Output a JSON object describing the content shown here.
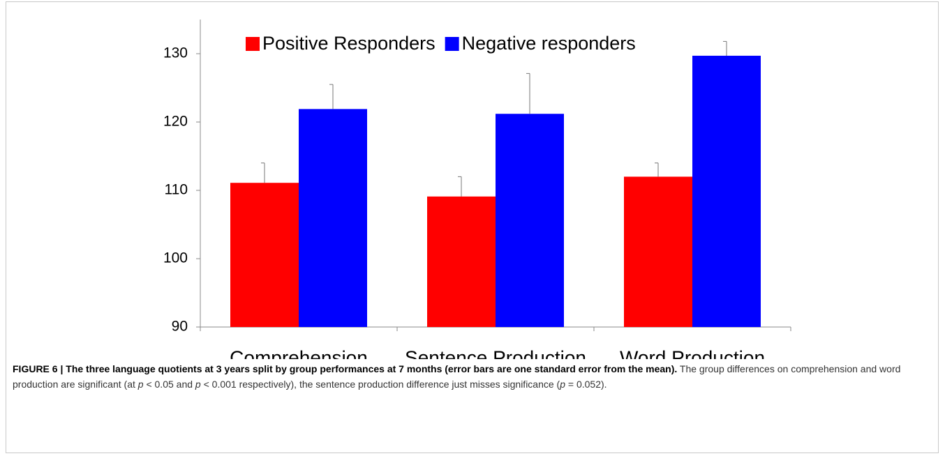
{
  "chart_data": {
    "type": "bar",
    "categories": [
      "Comprehension",
      "Sentence Production",
      "Word Production"
    ],
    "series": [
      {
        "name": "Positive Responders",
        "color": "#ff0000",
        "values": [
          111.1,
          109.1,
          112.0
        ],
        "errors": [
          2.9,
          2.9,
          2.0
        ]
      },
      {
        "name": "Negative responders",
        "color": "#0000ff",
        "values": [
          121.9,
          121.2,
          129.7
        ],
        "errors": [
          3.6,
          5.9,
          2.1
        ]
      }
    ],
    "ylim": [
      90,
      135
    ],
    "yticks": [
      90,
      100,
      110,
      120,
      130
    ],
    "legend": "top"
  },
  "caption": {
    "label": "FIGURE 6 | The three language quotients at 3 years split by group performances at 7 months (error bars are one standard error from the mean).",
    "parts": [
      "The group differences on comprehension and word production are significant (at ",
      "p",
      " < 0.05 and ",
      "p",
      " < 0.001 respectively), the sentence production difference just misses significance (",
      "p",
      " = 0.052)."
    ]
  }
}
